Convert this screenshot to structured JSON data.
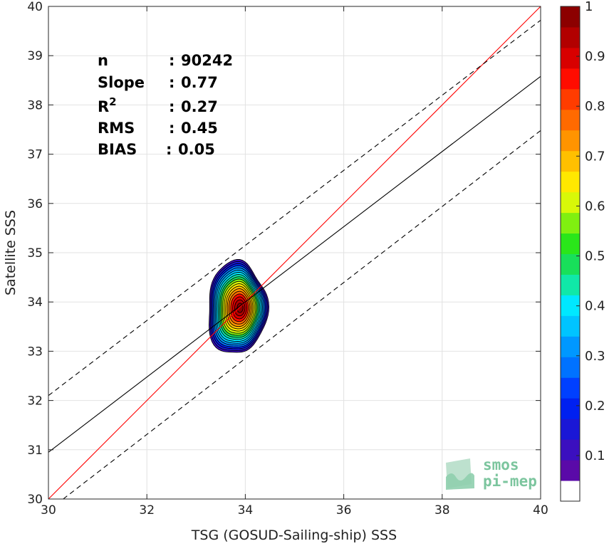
{
  "chart_data": {
    "type": "scatter",
    "subtype": "density-contour",
    "xlabel": "TSG (GOSUD-Sailing-ship) SSS",
    "ylabel": "Satellite SSS",
    "xlim": [
      30,
      40
    ],
    "ylim": [
      30,
      40
    ],
    "xticks": [
      30,
      32,
      34,
      36,
      38,
      40
    ],
    "yticks": [
      30,
      31,
      32,
      33,
      34,
      35,
      36,
      37,
      38,
      39,
      40
    ],
    "grid": true,
    "stats": [
      {
        "label": "n",
        "sep": ": ",
        "value": "90242"
      },
      {
        "label": "Slope",
        "sep": ": ",
        "value": "0.77"
      },
      {
        "label": "R",
        "sup": "2",
        "sep": ": ",
        "value": "0.27"
      },
      {
        "label": "RMS",
        "sep": ": ",
        "value": "0.45"
      },
      {
        "label": "BIAS",
        "sep": ": ",
        "value": "0.05"
      }
    ],
    "lines": [
      {
        "name": "identity",
        "color": "#ff0000",
        "style": "solid",
        "x": [
          30,
          40
        ],
        "y": [
          30,
          40
        ]
      },
      {
        "name": "regression",
        "color": "#000000",
        "style": "solid",
        "x": [
          30,
          40
        ],
        "y": [
          30.95,
          38.58
        ]
      },
      {
        "name": "upper-bound",
        "color": "#000000",
        "style": "dashed",
        "x": [
          30,
          40
        ],
        "y": [
          32.1,
          39.72
        ]
      },
      {
        "name": "lower-bound",
        "color": "#000000",
        "style": "dashed",
        "x": [
          30.3,
          40
        ],
        "y": [
          30,
          37.48
        ]
      }
    ],
    "density": {
      "center": [
        33.9,
        33.88
      ],
      "levels": [
        0.05,
        0.1,
        0.15,
        0.2,
        0.25,
        0.3,
        0.35,
        0.4,
        0.45,
        0.5,
        0.55,
        0.6,
        0.65,
        0.7,
        0.75,
        0.8,
        0.85,
        0.9,
        0.95
      ],
      "outer_extent": {
        "x": [
          33.2,
          34.45
        ],
        "y": [
          32.9,
          34.85
        ]
      }
    },
    "colorbar": {
      "min": 0,
      "max": 1,
      "ticks": [
        0.1,
        0.2,
        0.3,
        0.4,
        0.5,
        0.6,
        0.7,
        0.8,
        0.9,
        1
      ],
      "tick_labels": [
        "0.1",
        "0.2",
        "0.3",
        "0.4",
        "0.5",
        "0.6",
        "0.7",
        "0.8",
        "0.9",
        "1"
      ],
      "colors": [
        "#ffffff",
        "#5a0aa8",
        "#3b0fbf",
        "#1a17d6",
        "#0020f0",
        "#0040ff",
        "#0072ff",
        "#0098ff",
        "#00c4ff",
        "#00e8ff",
        "#10e8a8",
        "#18e05a",
        "#2ae61a",
        "#80f010",
        "#d8f808",
        "#ffe800",
        "#ffc000",
        "#ff9400",
        "#ff6a00",
        "#ff3c00",
        "#ff0c00",
        "#d80000",
        "#b20000",
        "#8c0000"
      ]
    }
  },
  "logo": {
    "line1": "smos",
    "line2": "pi-mep",
    "color": "#7cc59e"
  }
}
